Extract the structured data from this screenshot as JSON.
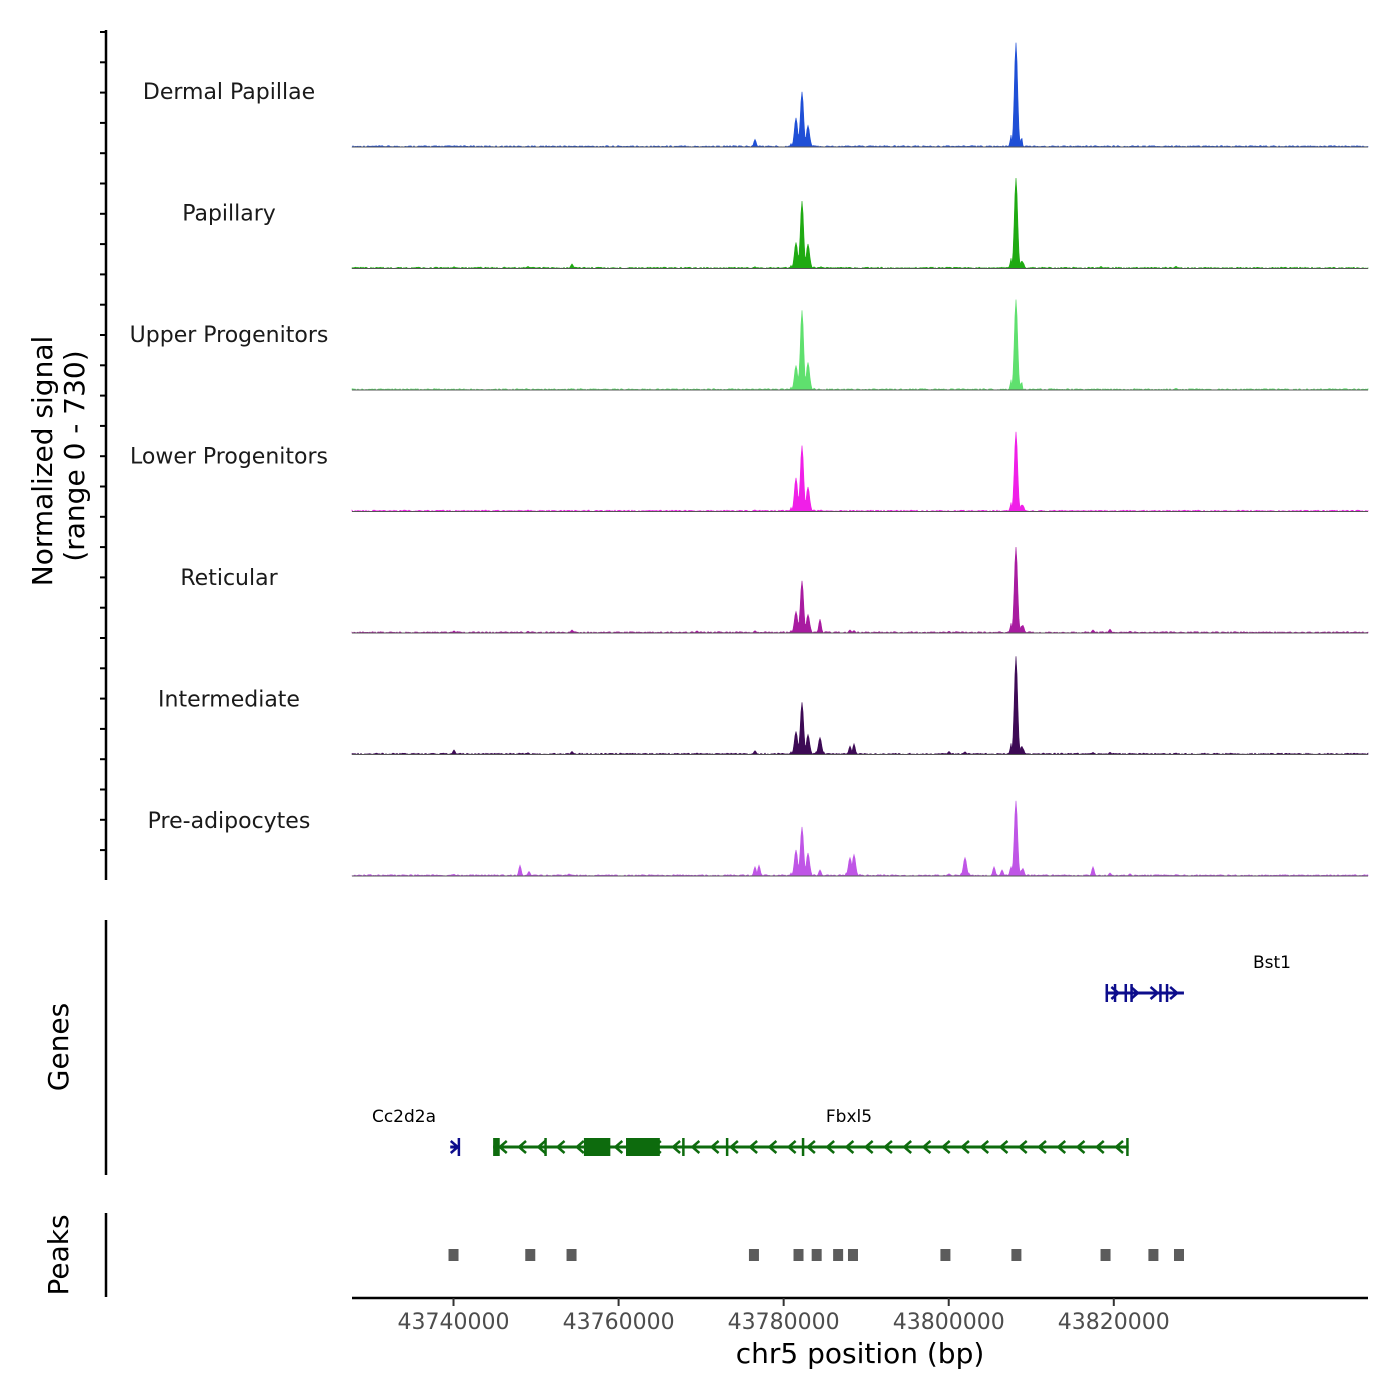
{
  "chart_data": {
    "type": "area",
    "title": "",
    "ylabel": "Normalized signal",
    "ylabel_range": "(range 0 - 730)",
    "y_range": [
      0,
      730
    ],
    "xlabel": "chr5 position (bp)",
    "chromosome": "chr5",
    "x_range": [
      43727700,
      43850800
    ],
    "x_ticks": [
      43740000,
      43760000,
      43780000,
      43800000,
      43820000
    ],
    "x_tick_labels": [
      "43740000",
      "43760000",
      "43780000",
      "43800000",
      "43820000"
    ],
    "tracks": [
      {
        "name": "Dermal Papillae",
        "color": "#1f4fd6",
        "peaks": [
          [
            43740000,
            6
          ],
          [
            43749000,
            4
          ],
          [
            43754000,
            4
          ],
          [
            43776500,
            50
          ],
          [
            43781500,
            190
          ],
          [
            43782200,
            360
          ],
          [
            43783000,
            140
          ],
          [
            43788000,
            4
          ],
          [
            43800000,
            4
          ],
          [
            43807500,
            40
          ],
          [
            43808200,
            680
          ],
          [
            43818000,
            5
          ],
          [
            43822000,
            3
          ],
          [
            43827500,
            8
          ]
        ]
      },
      {
        "name": "Papillary",
        "color": "#1faa12",
        "peaks": [
          [
            43740000,
            12
          ],
          [
            43749000,
            14
          ],
          [
            43754300,
            30
          ],
          [
            43776500,
            12
          ],
          [
            43781500,
            170
          ],
          [
            43782200,
            440
          ],
          [
            43783000,
            160
          ],
          [
            43784500,
            12
          ],
          [
            43788000,
            8
          ],
          [
            43800000,
            5
          ],
          [
            43807500,
            40
          ],
          [
            43808200,
            590
          ],
          [
            43809000,
            40
          ],
          [
            43818500,
            14
          ],
          [
            43827500,
            15
          ]
        ]
      },
      {
        "name": "Upper Progenitors",
        "color": "#5fe06e",
        "peaks": [
          [
            43740000,
            4
          ],
          [
            43749000,
            4
          ],
          [
            43782200,
            520
          ],
          [
            43781500,
            160
          ],
          [
            43783000,
            180
          ],
          [
            43808200,
            590
          ],
          [
            43807500,
            30
          ],
          [
            43827500,
            12
          ]
        ]
      },
      {
        "name": "Lower Progenitors",
        "color": "#f01fe8",
        "peaks": [
          [
            43749000,
            10
          ],
          [
            43754000,
            6
          ],
          [
            43776500,
            10
          ],
          [
            43781500,
            220
          ],
          [
            43782200,
            430
          ],
          [
            43783000,
            160
          ],
          [
            43784500,
            10
          ],
          [
            43808200,
            520
          ],
          [
            43807500,
            30
          ],
          [
            43809000,
            40
          ],
          [
            43818500,
            8
          ]
        ]
      },
      {
        "name": "Reticular",
        "color": "#a81ba0",
        "peaks": [
          [
            43740000,
            14
          ],
          [
            43749000,
            12
          ],
          [
            43754300,
            20
          ],
          [
            43769500,
            14
          ],
          [
            43776500,
            15
          ],
          [
            43781500,
            140
          ],
          [
            43782200,
            340
          ],
          [
            43783000,
            120
          ],
          [
            43784400,
            90
          ],
          [
            43788000,
            20
          ],
          [
            43788500,
            16
          ],
          [
            43793500,
            8
          ],
          [
            43800000,
            12
          ],
          [
            43808200,
            560
          ],
          [
            43807500,
            40
          ],
          [
            43809000,
            50
          ],
          [
            43817500,
            20
          ],
          [
            43819500,
            25
          ],
          [
            43822000,
            12
          ]
        ]
      },
      {
        "name": "Intermediate",
        "color": "#3d0a55",
        "peaks": [
          [
            43740000,
            30
          ],
          [
            43749000,
            12
          ],
          [
            43754300,
            20
          ],
          [
            43769500,
            10
          ],
          [
            43776500,
            25
          ],
          [
            43781500,
            150
          ],
          [
            43782200,
            340
          ],
          [
            43783000,
            130
          ],
          [
            43784400,
            110
          ],
          [
            43788000,
            55
          ],
          [
            43788500,
            70
          ],
          [
            43800000,
            20
          ],
          [
            43802000,
            18
          ],
          [
            43808200,
            640
          ],
          [
            43807500,
            40
          ],
          [
            43809000,
            40
          ],
          [
            43817500,
            14
          ],
          [
            43819500,
            15
          ],
          [
            43827500,
            10
          ]
        ]
      },
      {
        "name": "Pre-adipocytes",
        "color": "#bf55e6",
        "peaks": [
          [
            43740000,
            12
          ],
          [
            43748000,
            70
          ],
          [
            43749200,
            30
          ],
          [
            43754000,
            14
          ],
          [
            43776500,
            60
          ],
          [
            43777000,
            70
          ],
          [
            43781500,
            170
          ],
          [
            43782200,
            320
          ],
          [
            43783000,
            150
          ],
          [
            43784400,
            40
          ],
          [
            43788000,
            120
          ],
          [
            43788500,
            140
          ],
          [
            43800000,
            15
          ],
          [
            43802000,
            120
          ],
          [
            43805500,
            60
          ],
          [
            43806500,
            40
          ],
          [
            43808200,
            490
          ],
          [
            43807500,
            60
          ],
          [
            43809000,
            50
          ],
          [
            43817500,
            60
          ],
          [
            43819500,
            20
          ],
          [
            43822000,
            15
          ],
          [
            43827500,
            10
          ]
        ]
      }
    ],
    "genes": [
      {
        "name": "Bst1",
        "strand": "+",
        "color": "#0d0d8c",
        "start": 43819000,
        "end": 43828500,
        "exons": [
          [
            43819000,
            43819300
          ],
          [
            43820000,
            43820300
          ],
          [
            43821300,
            43821600
          ],
          [
            43822000,
            43822200
          ],
          [
            43825500,
            43825700
          ],
          [
            43826300,
            43826500
          ]
        ]
      },
      {
        "name": "Cc2d2a",
        "strand": "+",
        "color": "#0d0d8c",
        "start": 43739600,
        "end": 43740700,
        "exons": [
          [
            43740500,
            43740700
          ]
        ]
      },
      {
        "name": "Fbxl5",
        "strand": "-",
        "color": "#0d6b0d",
        "start": 43744800,
        "end": 43821800,
        "exons": [
          [
            43744800,
            43745600
          ],
          [
            43751000,
            43751300
          ],
          [
            43755800,
            43759000
          ],
          [
            43760900,
            43765000
          ],
          [
            43767700,
            43767900
          ],
          [
            43773000,
            43773300
          ],
          [
            43782200,
            43782400
          ],
          [
            43821500,
            43821800
          ]
        ]
      }
    ],
    "peaks_track": {
      "name": "Peaks",
      "color": "#5c5c5c",
      "positions": [
        43740000,
        43749300,
        43754300,
        43776400,
        43781800,
        43784000,
        43786600,
        43788400,
        43799600,
        43808200,
        43819000,
        43824800,
        43827900
      ]
    },
    "panel_labels": {
      "genes": "Genes",
      "peaks": "Peaks"
    }
  }
}
